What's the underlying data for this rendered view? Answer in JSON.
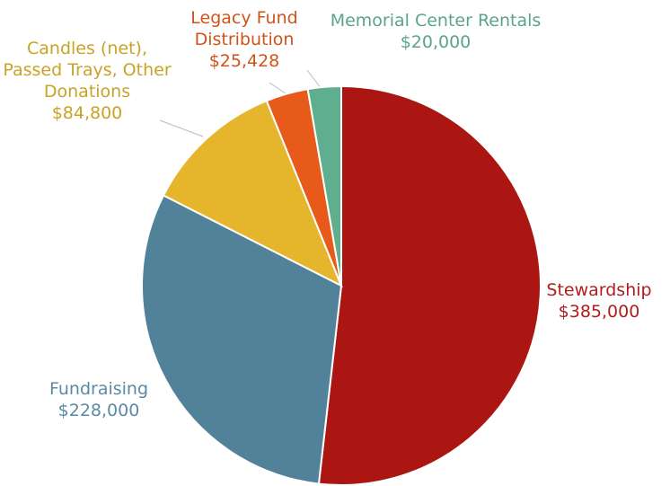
{
  "chart_data": {
    "type": "pie",
    "categories": [
      "Stewardship",
      "Fundraising",
      "Candles (net), Passed Trays, Other Donations",
      "Legacy Fund Distribution",
      "Memorial Center Rentals"
    ],
    "values": [
      385000,
      228000,
      84800,
      25428,
      20000
    ],
    "value_labels": [
      "$385,000",
      "$228,000",
      "$84,800",
      "$25,428",
      "$20,000"
    ],
    "colors": [
      "#ab1612",
      "#52829a",
      "#e5b52c",
      "#e85a1a",
      "#5fae8f"
    ],
    "label_colors": [
      "#b31c1c",
      "#5a8aa6",
      "#c9a227",
      "#d0541a",
      "#5aa58a"
    ]
  }
}
